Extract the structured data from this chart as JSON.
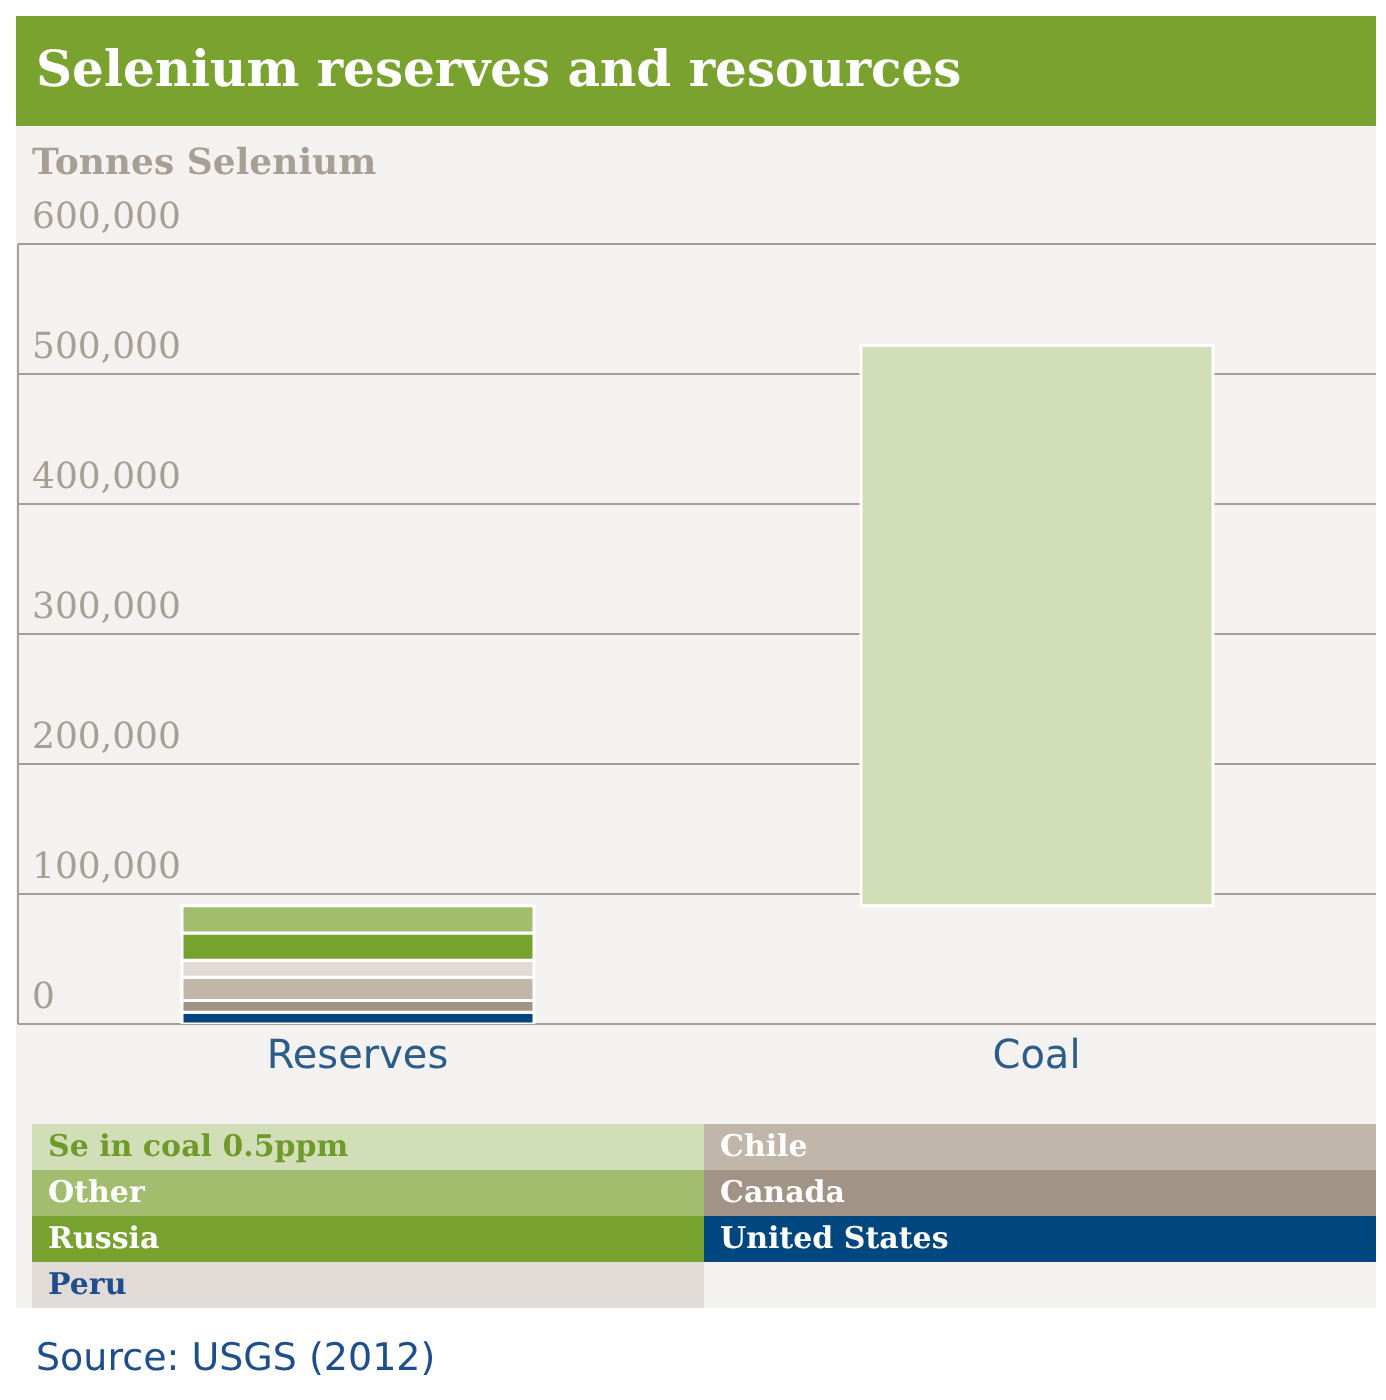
{
  "chart_data": {
    "type": "bar",
    "title": "Selenium reserves and resources",
    "ylabel": "Tonnes Selenium",
    "categories": [
      "Reserves",
      "Coal"
    ],
    "stacked": true,
    "series": [
      {
        "name": "United States",
        "color": "#00467f",
        "values": [
          9000,
          null
        ]
      },
      {
        "name": "Canada",
        "color": "#a19487",
        "values": [
          9000,
          null
        ]
      },
      {
        "name": "Chile",
        "color": "#c0b6aa",
        "values": [
          18000,
          null
        ]
      },
      {
        "name": "Peru",
        "color": "#e0dbd7",
        "values": [
          13000,
          null
        ]
      },
      {
        "name": "Russia",
        "color": "#78a22f",
        "values": [
          21000,
          null
        ]
      },
      {
        "name": "Other",
        "color": "#a3bd6f",
        "values": [
          21000,
          null
        ]
      },
      {
        "name": "Se in coal 0.5ppm",
        "color": "#d2deb8",
        "values": [
          null,
          431000
        ],
        "base": [
          null,
          91000
        ]
      }
    ],
    "ylim": [
      0,
      600000
    ],
    "yticks": [
      0,
      {
        "value": 100000,
        "label": "100,000"
      },
      {
        "value": 200000,
        "label": "200,000"
      },
      {
        "value": 300000,
        "label": "300,000"
      },
      {
        "value": 400000,
        "label": "400,000"
      },
      {
        "value": 500000,
        "label": "500,000"
      },
      {
        "value": 600000,
        "label": "600,000"
      }
    ],
    "grid": "y",
    "legend": "bottom",
    "annotations": [
      "Source: USGS (2012)"
    ]
  }
}
